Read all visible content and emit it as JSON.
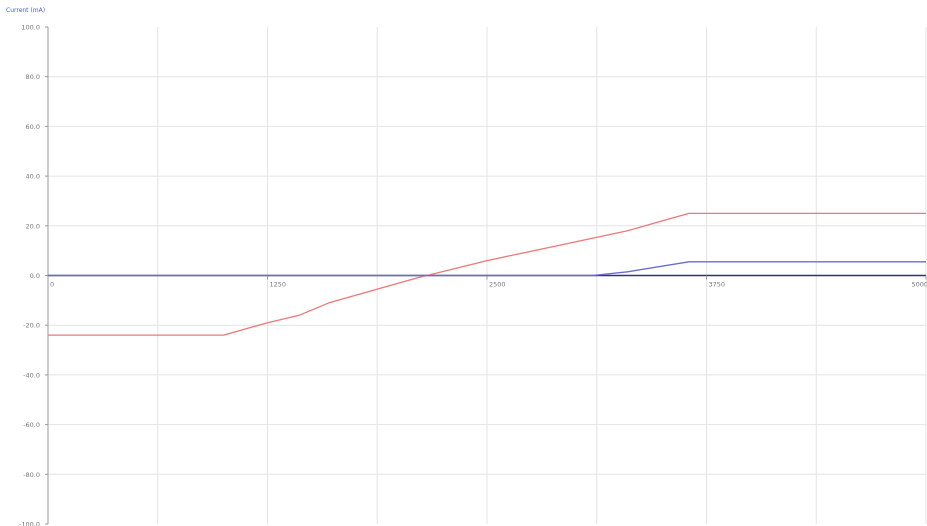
{
  "chart_data": {
    "type": "line",
    "title": "",
    "xlabel": "",
    "ylabel": "Current (mA)",
    "xlim": [
      0,
      5000
    ],
    "ylim": [
      -100,
      100
    ],
    "x_ticks": [
      0,
      1250,
      2500,
      3750,
      5000
    ],
    "x_tick_labels": [
      "0",
      "1250",
      "2500",
      "3750",
      "5000"
    ],
    "y_ticks": [
      100,
      80,
      60,
      40,
      20,
      0,
      -20,
      -40,
      -60,
      -80,
      -100
    ],
    "y_tick_labels": [
      "100.0",
      "80.0",
      "60.0",
      "40.0",
      "20.0",
      "0.0",
      "-20.0",
      "-40.0",
      "-60.0",
      "-80.0",
      "-100.0"
    ],
    "grid": true,
    "series": [
      {
        "color": "#ee7777",
        "x": [
          0,
          1000,
          1250,
          1430,
          1600,
          2100,
          2500,
          2900,
          3300,
          3450,
          3650,
          5000
        ],
        "y": [
          -24,
          -24,
          -19,
          -16,
          -11,
          -1,
          6,
          12,
          18,
          21,
          25,
          25
        ]
      },
      {
        "color": "#6b6bd6",
        "x": [
          0,
          3100,
          3300,
          3650,
          5000
        ],
        "y": [
          0,
          0,
          1.5,
          5.5,
          5.5
        ]
      }
    ],
    "baseline": {
      "y": 0,
      "color": "#303080"
    }
  }
}
